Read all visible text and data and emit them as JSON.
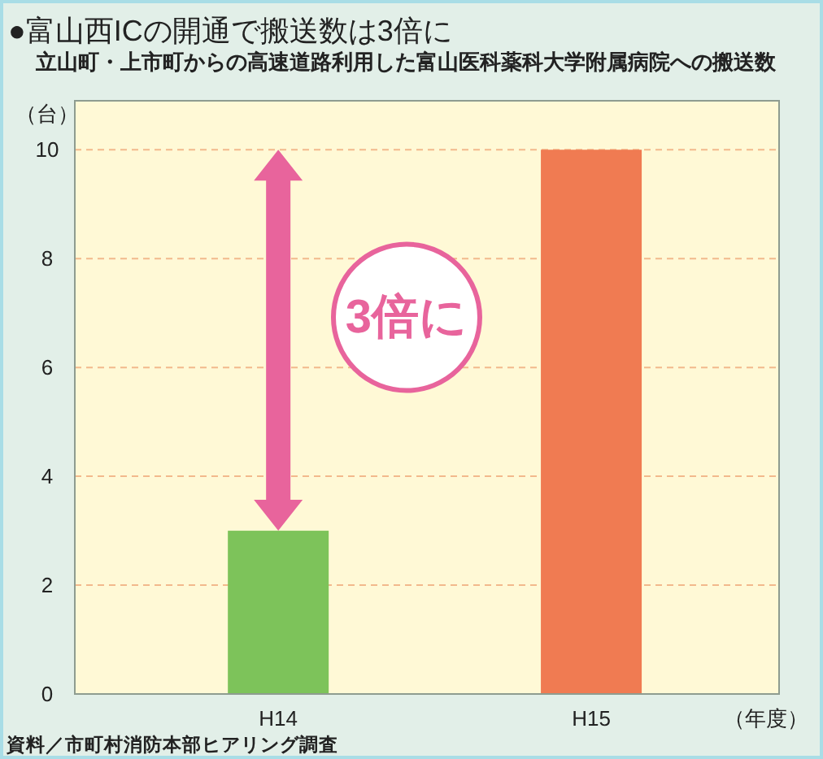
{
  "chart_data": {
    "type": "bar",
    "title": "●富山西ICの開通で搬送数は3倍に",
    "subtitle": "立山町・上市町からの高速道路利用した富山医科薬科大学附属病院への搬送数",
    "ylabel": "（台）",
    "xlabel": "（年度）",
    "categories": [
      "H14",
      "H15"
    ],
    "values": [
      3,
      10
    ],
    "colors": [
      "#7dc35a",
      "#f07b52"
    ],
    "ylim": [
      0,
      10.9
    ],
    "yticks": [
      0,
      2,
      4,
      6,
      8,
      10
    ],
    "grid": "y",
    "annotations": [
      "3倍に",
      "資料／市町村消防本部ヒアリング調査"
    ]
  }
}
